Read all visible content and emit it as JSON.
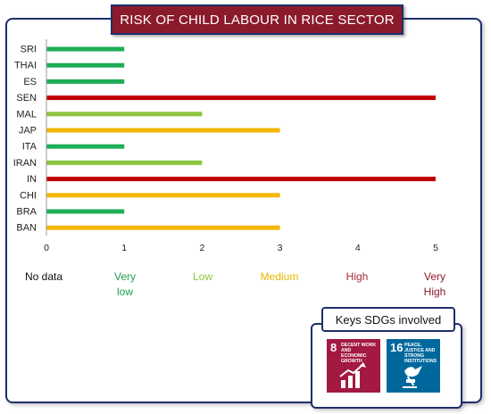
{
  "title": "RISK OF CHILD LABOUR IN RICE SECTOR",
  "chart_data": {
    "type": "bar",
    "orientation": "horizontal",
    "categories": [
      "SRI",
      "THAI",
      "ES",
      "SEN",
      "MAL",
      "JAP",
      "ITA",
      "IRAN",
      "IN",
      "CHI",
      "BRA",
      "BAN"
    ],
    "values": [
      1,
      1,
      1,
      5,
      2,
      3,
      1,
      2,
      5,
      3,
      1,
      3
    ],
    "xlim": [
      0,
      5
    ],
    "xticks": [
      "0",
      "1",
      "2",
      "3",
      "4",
      "5"
    ],
    "grid": false,
    "colors": {
      "1": "#1fae55",
      "2": "#8dc63f",
      "3": "#f2b705",
      "5": "#c00000"
    }
  },
  "legend": [
    {
      "text": "No data",
      "color": "#111111"
    },
    {
      "text": "Very\nlow",
      "color": "#1f9e4a"
    },
    {
      "text": "Low",
      "color": "#8dc63f"
    },
    {
      "text": "Medium",
      "color": "#e6b800"
    },
    {
      "text": "High",
      "color": "#a52a3a"
    },
    {
      "text": "Very\nHigh",
      "color": "#8b1a2b"
    }
  ],
  "sdg": {
    "title": "Keys SDGs involved",
    "tiles": [
      {
        "number": "8",
        "text": "DECENT WORK AND ECONOMIC GROWTH",
        "color": "#a21942",
        "icon": "growth-chart-icon"
      },
      {
        "number": "16",
        "text": "PEACE, JUSTICE AND STRONG INSTITUTIONS",
        "color": "#00689d",
        "icon": "dove-gavel-icon"
      }
    ]
  }
}
